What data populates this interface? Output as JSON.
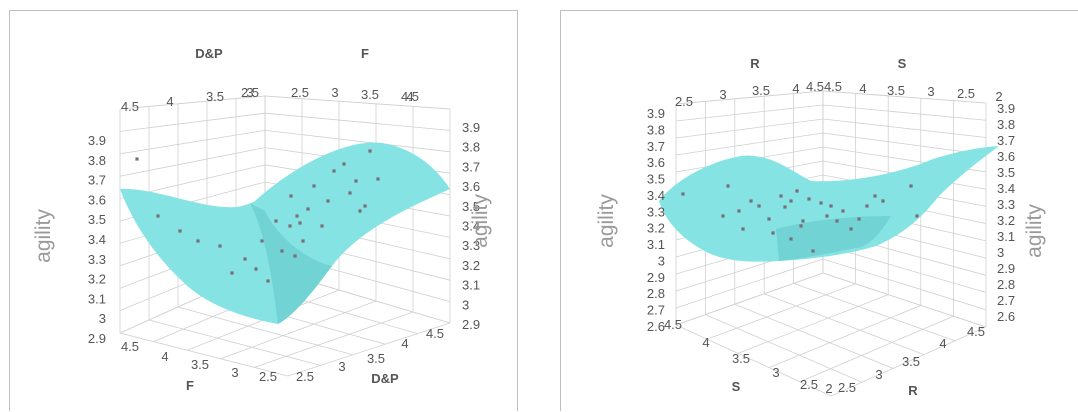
{
  "chart_data": [
    {
      "type": "surface3d",
      "axes": {
        "x": {
          "label": "D&P",
          "range": [
            2.5,
            4.5
          ]
        },
        "y": {
          "label": "F",
          "range": [
            2.5,
            4.5
          ]
        },
        "z": {
          "label": "agility",
          "range": [
            2.9,
            3.9
          ]
        }
      },
      "ticks": {
        "top_left": [
          "4.5",
          "4",
          "3.5",
          "3",
          "2.5"
        ],
        "top_right": [
          "2.5",
          "3",
          "3.5",
          "4",
          "4.5"
        ],
        "bottom_left": [
          "4.5",
          "4",
          "3.5",
          "3",
          "2.5"
        ],
        "bottom_right": [
          "2.5",
          "3",
          "3.5",
          "4",
          "4.5"
        ],
        "z_left": [
          "3.9",
          "3.8",
          "3.7",
          "3.6",
          "3.5",
          "3.4",
          "3.3",
          "3.2",
          "3.1",
          "3",
          "2.9"
        ],
        "z_right": [
          "3.9",
          "3.8",
          "3.7",
          "3.6",
          "3.5",
          "3.4",
          "3.3",
          "3.2",
          "3.1",
          "3",
          "2.9"
        ]
      },
      "labels": {
        "top_left": "D&P",
        "top_right": "F",
        "bottom_left": "F",
        "bottom_right": "D&P",
        "z_left": "agility",
        "z_right": "agility"
      },
      "grid": true,
      "surface_color": "#86e3e3",
      "point_color": "#7a6f78"
    },
    {
      "type": "surface3d",
      "axes": {
        "x": {
          "label": "R",
          "range": [
            2,
            4.5
          ]
        },
        "y": {
          "label": "S",
          "range": [
            2,
            4.5
          ]
        },
        "z": {
          "label": "agility",
          "range": [
            2.6,
            3.9
          ]
        }
      },
      "ticks": {
        "top_left": [
          "2.5",
          "3",
          "3.5",
          "4",
          "4.5"
        ],
        "top_right": [
          "4.5",
          "4",
          "3.5",
          "3",
          "2.5",
          "2"
        ],
        "bottom_left": [
          "4.5",
          "4",
          "3.5",
          "3",
          "2.5",
          "2"
        ],
        "bottom_right": [
          "2.5",
          "3",
          "3.5",
          "4",
          "4.5"
        ],
        "z_left": [
          "3.9",
          "3.8",
          "3.7",
          "3.6",
          "3.5",
          "3.4",
          "3.3",
          "3.2",
          "3.1",
          "3",
          "2.9",
          "2.8",
          "2.7",
          "2.6"
        ],
        "z_right": [
          "3.9",
          "3.8",
          "3.7",
          "3.6",
          "3.5",
          "3.4",
          "3.3",
          "3.2",
          "3.1",
          "3",
          "2.9",
          "2.8",
          "2.7",
          "2.6"
        ]
      },
      "labels": {
        "top_left": "R",
        "top_right": "S",
        "bottom_left": "S",
        "bottom_right": "R",
        "z_left": "agility",
        "z_right": "agility"
      },
      "grid": true,
      "surface_color": "#86e3e3",
      "point_color": "#7a6f78"
    }
  ]
}
